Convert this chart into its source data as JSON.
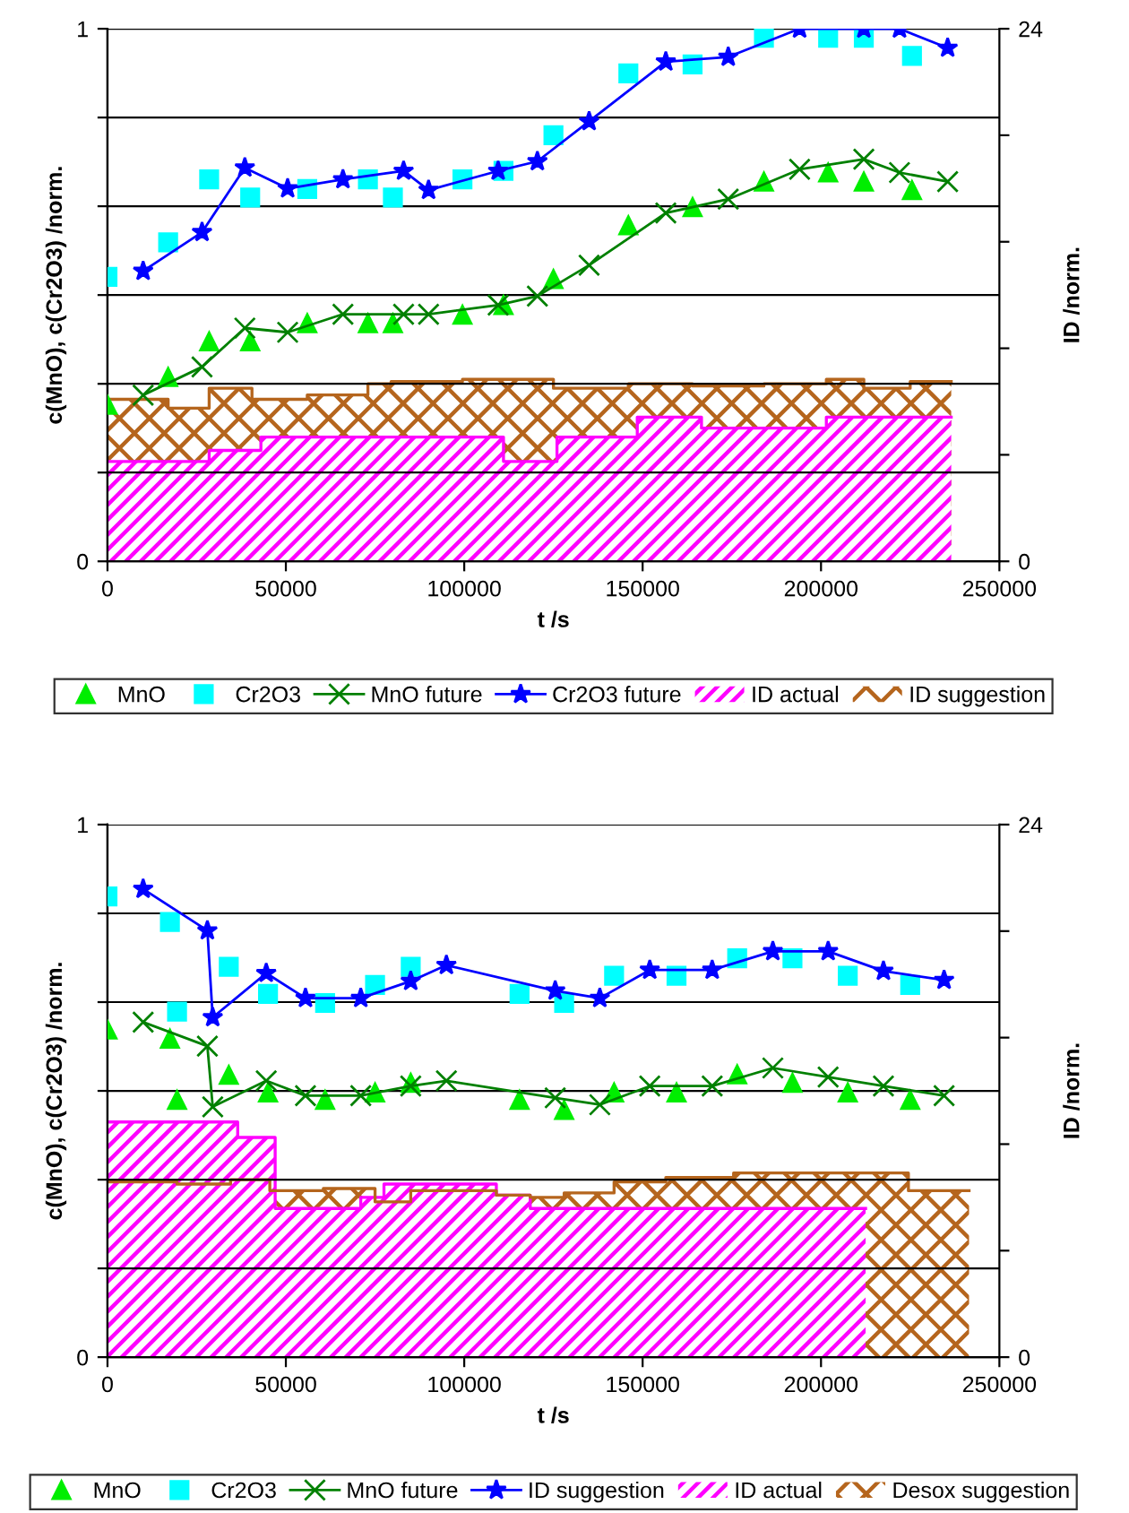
{
  "chart_data": [
    {
      "type": "line",
      "xlabel": "t /s",
      "ylabel": "c(MnO), c(Cr2O3) /norm.",
      "y2label": "ID /norm.",
      "xlim": [
        0,
        250000
      ],
      "xticks": [
        0,
        50000,
        100000,
        150000,
        200000,
        250000
      ],
      "ylim": [
        0,
        1
      ],
      "yticks": [
        0,
        {
          "value": 0.1667,
          "label": null
        },
        {
          "value": 0.3333,
          "label": null
        },
        {
          "value": 0.5,
          "label": null
        },
        {
          "value": 0.6667,
          "label": null
        },
        {
          "value": 0.8333,
          "label": null
        },
        1
      ],
      "y2lim": [
        0,
        24
      ],
      "y2ticks": [
        0,
        {
          "value": 4.8,
          "label": null
        },
        {
          "value": 9.6,
          "label": null
        },
        {
          "value": 14.4,
          "label": null
        },
        {
          "value": 19.2,
          "label": null
        },
        24
      ],
      "grid": "y",
      "legend": "bottom",
      "series": [
        {
          "name": "MnO",
          "type": "scatter",
          "marker": "triangle",
          "color": "#00ee00",
          "x": [
            0,
            17000,
            28500,
            40000,
            56000,
            73000,
            80000,
            99500,
            111000,
            125000,
            146000,
            164000,
            184000,
            202000,
            212000,
            225500
          ],
          "values": [
            0.294,
            0.346,
            0.413,
            0.413,
            0.447,
            0.447,
            0.447,
            0.463,
            0.481,
            0.53,
            0.631,
            0.665,
            0.713,
            0.73,
            0.713,
            0.697
          ]
        },
        {
          "name": "Cr2O3",
          "type": "scatter",
          "marker": "square",
          "color": "#00ffff",
          "x": [
            0,
            17000,
            28500,
            40000,
            56000,
            73000,
            80000,
            99500,
            111000,
            125000,
            146000,
            164000,
            184000,
            202000,
            212000,
            225500
          ],
          "values": [
            0.534,
            0.599,
            0.717,
            0.683,
            0.699,
            0.717,
            0.683,
            0.717,
            0.733,
            0.8,
            0.916,
            0.933,
            0.983,
            0.983,
            0.983,
            0.949
          ]
        },
        {
          "name": "MnO future",
          "marker": "cross",
          "color": "#008000",
          "x": [
            10000,
            26500,
            38500,
            50500,
            66000,
            83000,
            90000,
            109500,
            120500,
            135000,
            156500,
            174000,
            194000,
            212000,
            222000,
            235500
          ],
          "values": [
            0.312,
            0.365,
            0.438,
            0.43,
            0.464,
            0.464,
            0.464,
            0.481,
            0.498,
            0.556,
            0.654,
            0.68,
            0.736,
            0.755,
            0.73,
            0.713
          ]
        },
        {
          "name": "Cr2O3 future",
          "marker": "star",
          "color": "#0000ff",
          "x": [
            10000,
            26500,
            38500,
            50500,
            66000,
            83000,
            90000,
            109500,
            120500,
            135000,
            156500,
            174000,
            194000,
            212000,
            222000,
            235500
          ],
          "values": [
            0.545,
            0.618,
            0.739,
            0.7,
            0.717,
            0.733,
            0.697,
            0.733,
            0.751,
            0.826,
            0.938,
            0.947,
            1.0,
            1.0,
            1.0,
            0.964
          ]
        },
        {
          "name": "ID actual",
          "type": "area",
          "axis": "y2",
          "color": "#ff00ff",
          "x": [
            0,
            28500,
            28500,
            43000,
            43000,
            111000,
            111000,
            126000,
            126000,
            148500,
            148500,
            166500,
            166500,
            201500,
            201500,
            236500
          ],
          "values": [
            4.5,
            4.5,
            5.0,
            5.0,
            5.6,
            5.6,
            4.5,
            4.5,
            5.6,
            5.6,
            6.5,
            6.5,
            6.0,
            6.0,
            6.5,
            6.5
          ]
        },
        {
          "name": "ID suggestion",
          "type": "area",
          "axis": "y2",
          "color": "#b5651d",
          "x": [
            0,
            17000,
            17000,
            28500,
            28500,
            40500,
            40500,
            56000,
            56000,
            73000,
            73000,
            79500,
            79500,
            99500,
            99500,
            111000,
            111000,
            125000,
            125000,
            146000,
            146000,
            164000,
            164000,
            184000,
            184000,
            201500,
            201500,
            212000,
            212000,
            225000,
            225000,
            236500
          ],
          "values": [
            7.3,
            7.3,
            6.9,
            6.9,
            7.8,
            7.8,
            7.3,
            7.3,
            7.5,
            7.5,
            8.0,
            8.0,
            8.1,
            8.1,
            8.2,
            8.2,
            8.2,
            8.2,
            7.8,
            7.8,
            8.0,
            8.0,
            7.9,
            7.9,
            8.0,
            8.0,
            8.2,
            8.2,
            7.8,
            7.8,
            8.1,
            8.1
          ]
        }
      ]
    },
    {
      "type": "line",
      "xlabel": "t /s",
      "ylabel": "c(MnO), c(Cr2O3) /norm.",
      "y2label": "ID /norm.",
      "xlim": [
        0,
        250000
      ],
      "xticks": [
        0,
        50000,
        100000,
        150000,
        200000,
        250000
      ],
      "ylim": [
        0,
        1
      ],
      "yticks": [
        0,
        {
          "value": 0.1667,
          "label": null
        },
        {
          "value": 0.3333,
          "label": null
        },
        {
          "value": 0.5,
          "label": null
        },
        {
          "value": 0.6667,
          "label": null
        },
        {
          "value": 0.8333,
          "label": null
        },
        1
      ],
      "y2lim": [
        0,
        24
      ],
      "y2ticks": [
        0,
        {
          "value": 4.8,
          "label": null
        },
        {
          "value": 9.6,
          "label": null
        },
        {
          "value": 14.4,
          "label": null
        },
        {
          "value": 19.2,
          "label": null
        },
        24
      ],
      "grid": "y",
      "legend": "bottom",
      "series": [
        {
          "name": "MnO",
          "type": "scatter",
          "marker": "triangle",
          "color": "#00ee00",
          "x": [
            0,
            17500,
            19500,
            34000,
            45000,
            61000,
            75000,
            85000,
            115500,
            128000,
            142000,
            159500,
            176500,
            192000,
            207500,
            225000
          ],
          "values": [
            0.615,
            0.598,
            0.483,
            0.53,
            0.497,
            0.483,
            0.497,
            0.515,
            0.483,
            0.464,
            0.497,
            0.497,
            0.531,
            0.515,
            0.497,
            0.483
          ]
        },
        {
          "name": "Cr2O3",
          "type": "scatter",
          "marker": "square",
          "color": "#00ffff",
          "x": [
            0,
            17500,
            19500,
            34000,
            45000,
            61000,
            75000,
            85000,
            115500,
            128000,
            142000,
            159500,
            176500,
            192000,
            207500,
            225000
          ],
          "values": [
            0.865,
            0.817,
            0.649,
            0.733,
            0.682,
            0.665,
            0.699,
            0.733,
            0.682,
            0.665,
            0.716,
            0.716,
            0.749,
            0.749,
            0.716,
            0.699
          ]
        },
        {
          "name": "MnO future",
          "marker": "cross",
          "color": "#008000",
          "x": [
            10000,
            28000,
            29500,
            44500,
            55500,
            71000,
            85000,
            95000,
            125500,
            138000,
            152000,
            169500,
            186500,
            202000,
            217500,
            234500
          ],
          "values": [
            0.629,
            0.584,
            0.47,
            0.519,
            0.491,
            0.491,
            0.509,
            0.519,
            0.487,
            0.474,
            0.509,
            0.509,
            0.543,
            0.526,
            0.509,
            0.491
          ]
        },
        {
          "name": "ID suggestion",
          "marker": "star",
          "color": "#0000ff",
          "x": [
            10000,
            28000,
            29500,
            44500,
            55500,
            71000,
            85000,
            95000,
            125500,
            138000,
            152000,
            169500,
            186500,
            202000,
            217500,
            234500
          ],
          "values": [
            0.879,
            0.801,
            0.638,
            0.721,
            0.674,
            0.674,
            0.706,
            0.736,
            0.688,
            0.674,
            0.727,
            0.727,
            0.762,
            0.762,
            0.725,
            0.708
          ]
        },
        {
          "name": "ID actual",
          "type": "area",
          "axis": "y2",
          "color": "#ff00ff",
          "x": [
            0,
            36500,
            36500,
            47000,
            47000,
            71000,
            71000,
            77500,
            77500,
            109000,
            109000,
            118500,
            118500,
            212500
          ],
          "values": [
            10.6,
            10.6,
            9.9,
            9.9,
            6.7,
            6.7,
            7.2,
            7.2,
            7.8,
            7.8,
            7.3,
            7.3,
            6.7,
            6.7
          ]
        },
        {
          "name": "Desox suggestion",
          "type": "area",
          "axis": "y2",
          "color": "#b5651d",
          "x": [
            0,
            19500,
            19500,
            34500,
            34500,
            45500,
            45500,
            60500,
            60500,
            75000,
            75000,
            85000,
            85000,
            109000,
            109000,
            118500,
            118500,
            128000,
            128000,
            142000,
            142000,
            156500,
            156500,
            175500,
            175500,
            191500,
            191500,
            207500,
            207500,
            224500,
            224500,
            241500
          ],
          "values": [
            7.9,
            7.9,
            7.8,
            7.8,
            8.0,
            8.0,
            7.5,
            7.5,
            7.6,
            7.6,
            7.0,
            7.0,
            7.5,
            7.5,
            7.3,
            7.3,
            7.2,
            7.2,
            7.4,
            7.4,
            7.9,
            7.9,
            8.1,
            8.1,
            8.3,
            8.3,
            8.3,
            8.3,
            8.3,
            8.3,
            7.5,
            7.5
          ]
        }
      ]
    }
  ]
}
